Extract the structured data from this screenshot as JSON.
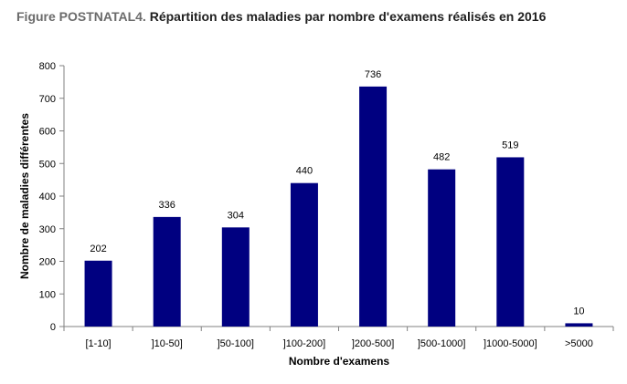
{
  "chart_data": {
    "type": "bar",
    "title_prefix": "Figure POSTNATAL4.",
    "title": "Répartition des maladies par nombre d'examens réalisés en 2016",
    "xlabel": "Nombre d'examens",
    "ylabel": "Nombre de maladies différentes",
    "categories": [
      "[1-10]",
      "]10-50]",
      "]50-100]",
      "]100-200]",
      "]200-500]",
      "]500-1000]",
      "]1000-5000]",
      ">5000"
    ],
    "values": [
      202,
      336,
      304,
      440,
      736,
      482,
      519,
      10
    ],
    "ylim": [
      0,
      800
    ],
    "yticks": [
      0,
      100,
      200,
      300,
      400,
      500,
      600,
      700,
      800
    ],
    "bar_color": "#000080",
    "grid": false,
    "legend": "none"
  }
}
